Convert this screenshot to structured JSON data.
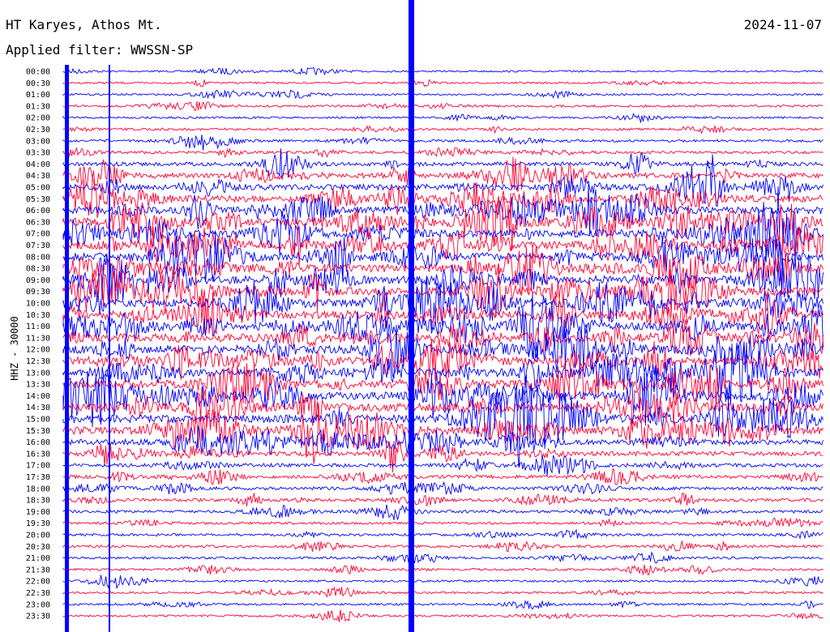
{
  "header": {
    "station": "HT Karyes, Athos Mt.",
    "date": "2024-11-07",
    "filter": "Applied filter: WWSSN-SP"
  },
  "chart_data": {
    "type": "line",
    "subtype": "helicorder",
    "title": "HT Karyes, Athos Mt.",
    "ylabel": "HHZ - 30000",
    "row_labels": [
      "00:00",
      "00:30",
      "01:00",
      "01:30",
      "02:00",
      "02:30",
      "03:00",
      "03:30",
      "04:00",
      "04:30",
      "05:00",
      "05:30",
      "06:00",
      "06:30",
      "07:00",
      "07:30",
      "08:00",
      "08:30",
      "09:00",
      "09:30",
      "10:00",
      "10:30",
      "11:00",
      "11:30",
      "12:00",
      "12:30",
      "13:00",
      "13:30",
      "14:00",
      "14:30",
      "15:00",
      "15:30",
      "16:00",
      "16:30",
      "17:00",
      "17:30",
      "18:00",
      "18:30",
      "19:00",
      "19:30",
      "20:00",
      "20:30",
      "21:00",
      "21:30",
      "22:00",
      "22:30",
      "23:00",
      "23:30"
    ],
    "series_colors": [
      "#0000ff",
      "#ff0033"
    ],
    "color_alternation": "blue on full hour rows, red on half hour rows",
    "activity_level": [
      0.1,
      0.12,
      0.12,
      0.18,
      0.14,
      0.18,
      0.2,
      0.22,
      0.4,
      0.55,
      0.65,
      0.75,
      0.85,
      0.9,
      0.92,
      0.92,
      0.95,
      0.95,
      0.95,
      0.95,
      0.95,
      0.95,
      0.95,
      0.95,
      0.95,
      0.95,
      0.95,
      0.95,
      0.95,
      0.95,
      0.95,
      0.92,
      0.6,
      0.45,
      0.35,
      0.35,
      0.3,
      0.3,
      0.25,
      0.2,
      0.2,
      0.22,
      0.18,
      0.18,
      0.15,
      0.15,
      0.15,
      0.15
    ],
    "grid": false,
    "legend": "none"
  }
}
